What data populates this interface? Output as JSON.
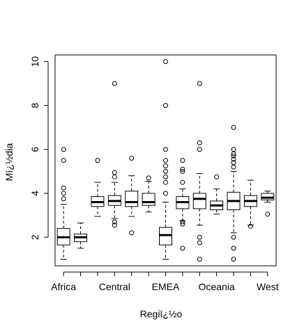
{
  "chart_data": {
    "type": "boxplot",
    "xlabel": "Regiï¿½o",
    "ylabel": "Mï¿½dia",
    "ylim": [
      0.7,
      10.3
    ],
    "y_ticks": [
      2,
      4,
      6,
      8,
      10
    ],
    "x_tick_labels": [
      "Africa",
      "Central",
      "EMEA",
      "Oceania",
      "West"
    ],
    "x_tick_label_positions": [
      1,
      4,
      7,
      10,
      13
    ],
    "boxes": [
      {
        "q1": 1.65,
        "median": 2.0,
        "q3": 2.4,
        "whisker_low": 1.0,
        "whisker_high": 3.5,
        "outliers": [
          3.75,
          4.0,
          4.25,
          5.5,
          6.0
        ]
      },
      {
        "q1": 1.8,
        "median": 2.0,
        "q3": 2.15,
        "whisker_low": 1.5,
        "whisker_high": 2.65,
        "outliers": []
      },
      {
        "q1": 3.4,
        "median": 3.6,
        "q3": 3.85,
        "whisker_low": 2.95,
        "whisker_high": 4.5,
        "outliers": [
          5.5
        ]
      },
      {
        "q1": 3.45,
        "median": 3.65,
        "q3": 3.9,
        "whisker_low": 2.85,
        "whisker_high": 4.5,
        "outliers": [
          2.55,
          2.7,
          4.75,
          4.95,
          9.0
        ]
      },
      {
        "q1": 3.4,
        "median": 3.6,
        "q3": 4.1,
        "whisker_low": 2.95,
        "whisker_high": 4.8,
        "outliers": [
          2.2,
          5.6
        ]
      },
      {
        "q1": 3.45,
        "median": 3.6,
        "q3": 4.0,
        "whisker_low": 3.15,
        "whisker_high": 4.55,
        "outliers": [
          4.7
        ]
      },
      {
        "q1": 1.65,
        "median": 2.1,
        "q3": 2.45,
        "whisker_low": 1.0,
        "whisker_high": 3.6,
        "outliers": [
          4.0,
          4.5,
          4.75,
          5.0,
          5.25,
          5.5,
          6.0,
          8.0,
          10.0
        ]
      },
      {
        "q1": 3.3,
        "median": 3.6,
        "q3": 3.85,
        "whisker_low": 2.75,
        "whisker_high": 4.2,
        "outliers": [
          1.5,
          2.6,
          2.7,
          4.5,
          5.0,
          5.1,
          5.5
        ]
      },
      {
        "q1": 3.3,
        "median": 3.75,
        "q3": 4.0,
        "whisker_low": 2.55,
        "whisker_high": 4.9,
        "outliers": [
          1.0,
          1.75,
          2.0,
          6.0,
          6.3,
          9.0
        ]
      },
      {
        "q1": 3.25,
        "median": 3.45,
        "q3": 3.65,
        "whisker_low": 3.05,
        "whisker_high": 4.2,
        "outliers": [
          4.75
        ]
      },
      {
        "q1": 3.25,
        "median": 3.65,
        "q3": 4.05,
        "whisker_low": 2.2,
        "whisker_high": 5.0,
        "outliers": [
          1.0,
          1.5,
          2.0,
          5.2,
          5.4,
          5.55,
          5.7,
          5.8,
          6.0,
          7.0
        ]
      },
      {
        "q1": 3.4,
        "median": 3.65,
        "q3": 3.9,
        "whisker_low": 2.55,
        "whisker_high": 4.6,
        "outliers": [
          2.5
        ]
      },
      {
        "q1": 3.7,
        "median": 3.8,
        "q3": 4.0,
        "whisker_low": 3.6,
        "whisker_high": 4.1,
        "outliers": [
          3.05
        ]
      }
    ]
  }
}
